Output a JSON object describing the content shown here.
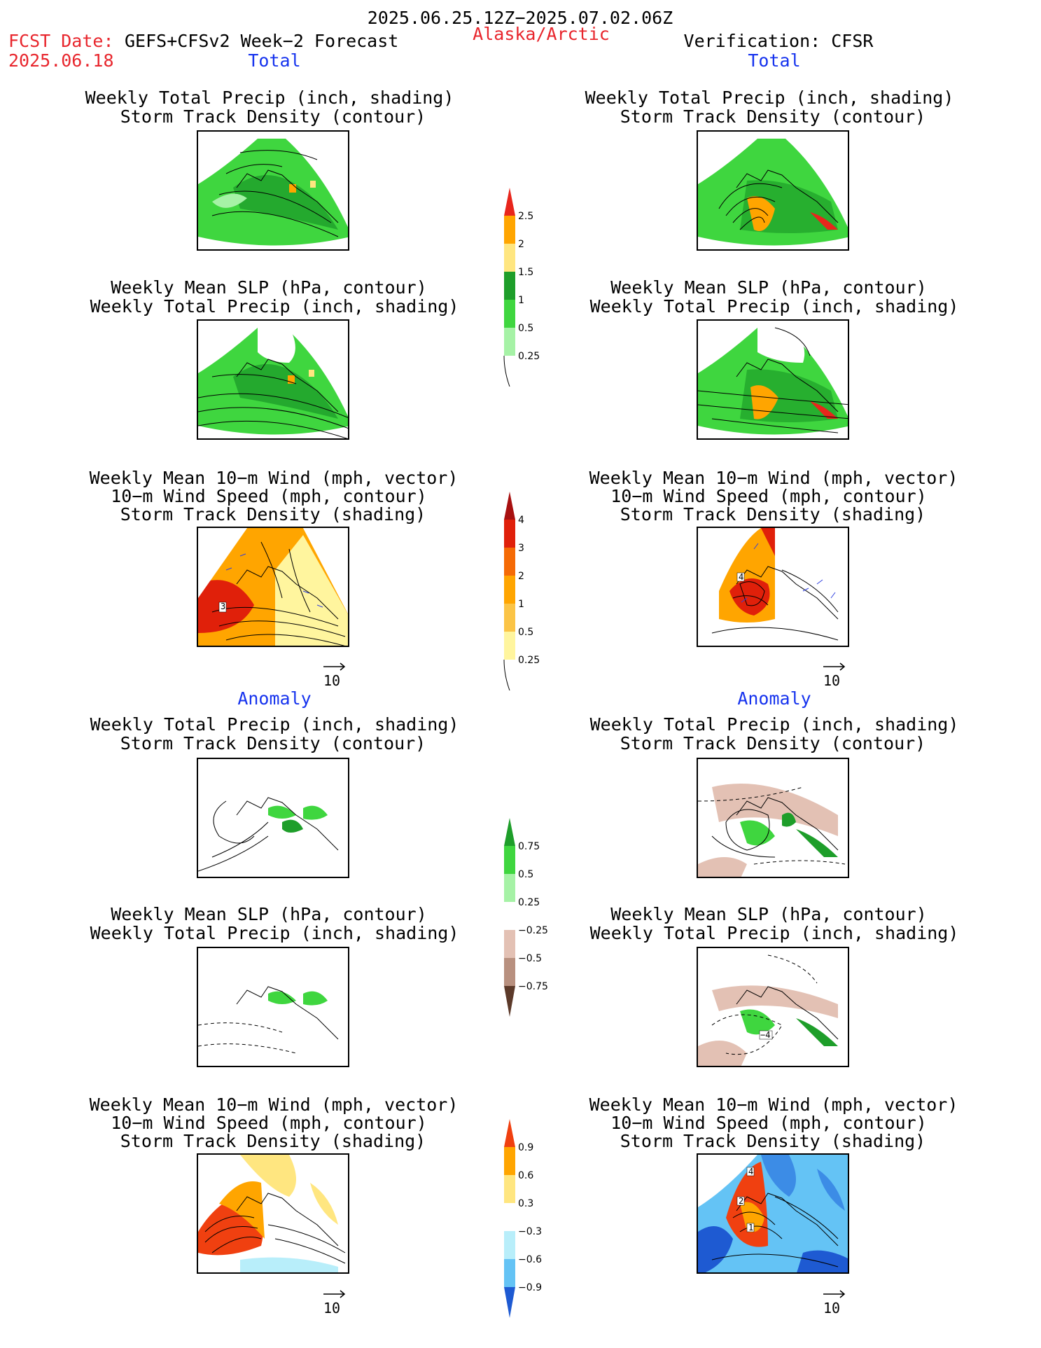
{
  "header": {
    "date_range": "2025.06.25.12Z−2025.07.02.06Z",
    "fcst_label": "FCST Date:",
    "model_label": "GEFS+CFSv2 Week−2 Forecast",
    "fcst_date": "2025.06.18",
    "region": "Alaska/Arctic",
    "verification": "Verification: CFSR"
  },
  "sections": {
    "total": "Total",
    "anomaly": "Anomaly"
  },
  "titles": {
    "precip_storm": [
      "Weekly Total Precip (inch, shading)",
      "Storm Track Density (contour)"
    ],
    "slp_precip": [
      "Weekly Mean SLP (hPa, contour)",
      "Weekly Total Precip (inch, shading)"
    ],
    "wind": [
      "Weekly Mean 10−m Wind (mph, vector)",
      "10−m Wind Speed (mph, contour)",
      "Storm Track Density (shading)"
    ]
  },
  "vector_ref": "10",
  "colorbars": {
    "total_precip": {
      "labels": [
        "2.5",
        "2",
        "1.5",
        "1",
        "0.5",
        "0.25"
      ],
      "colors": [
        "#e8261c",
        "#ffa500",
        "#ffe680",
        "#1e9e2a",
        "#3fd63f",
        "#a6f2a6"
      ]
    },
    "total_storm": {
      "labels": [
        "4",
        "3",
        "2",
        "1",
        "0.5",
        "0.25"
      ],
      "colors": [
        "#a81010",
        "#e0200a",
        "#f56a05",
        "#ffa500",
        "#fbc446",
        "#fff59e"
      ]
    },
    "anom_precip": {
      "labels": [
        "0.75",
        "0.5",
        "0.25",
        "−0.25",
        "−0.5",
        "−0.75"
      ],
      "colors": [
        "#1e9e2a",
        "#3fd63f",
        "#a6f2a6",
        "#ffffff",
        "#e3c1b4",
        "#b8907f",
        "#8c5e48",
        "#5c3a2a"
      ]
    },
    "anom_storm": {
      "labels": [
        "0.9",
        "0.6",
        "0.3",
        "−0.3",
        "−0.6",
        "−0.9"
      ],
      "colors": [
        "#f04010",
        "#ffa500",
        "#ffe680",
        "#ffffff",
        "#b8eefa",
        "#64c3f5",
        "#3c8ce6",
        "#1e5ad2"
      ]
    }
  },
  "map_labels": {
    "fcst_wind_total": "3",
    "cfsr_wind_total": "4",
    "cfsr_slp_anom": "−4",
    "cfsr_wind_anom_a": "4",
    "cfsr_wind_anom_b": "1",
    "cfsr_wind_anom_c": "2"
  }
}
